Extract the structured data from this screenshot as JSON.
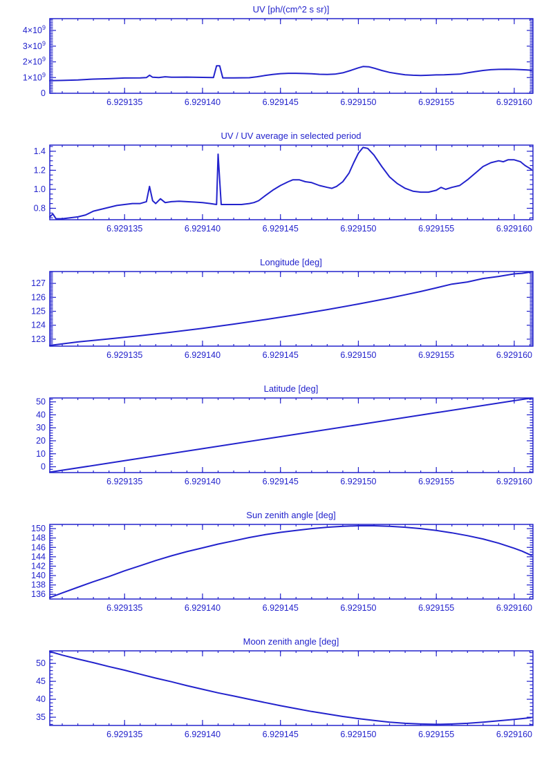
{
  "style": {
    "background": "#ffffff",
    "accent": "#2222cc"
  },
  "chart_data": [
    {
      "type": "line",
      "title": "UV [ph/(cm^2 s sr)]",
      "xlim": [
        6.9291302,
        6.9291612
      ],
      "ylim": [
        0,
        4750000000.0
      ],
      "xticks": [
        6.929135,
        6.92914,
        6.929145,
        6.92915,
        6.929155,
        6.92916
      ],
      "xtick_labels": [
        "6.929135",
        "6.929140",
        "6.929145",
        "6.929150",
        "6.929155",
        "6.929160"
      ],
      "x_minor_step": 1e-06,
      "yticks": [
        0,
        1000000000.0,
        2000000000.0,
        3000000000.0,
        4000000000.0
      ],
      "ytick_labels": [
        "0",
        "1×10^9",
        "2×10^9",
        "3×10^9",
        "4×10^9"
      ],
      "y_minor_step": 100000000.0,
      "x": [
        6.9291302,
        6.929131,
        6.929132,
        6.929133,
        6.929134,
        6.929135,
        6.929136,
        6.9291364,
        6.9291366,
        6.9291368,
        6.9291372,
        6.9291376,
        6.929138,
        6.929139,
        6.92914,
        6.9291407,
        6.9291409,
        6.9291411,
        6.9291413,
        6.929142,
        6.929143,
        6.9291435,
        6.929144,
        6.9291445,
        6.929145,
        6.9291455,
        6.929146,
        6.9291465,
        6.929147,
        6.9291475,
        6.929148,
        6.9291485,
        6.929149,
        6.9291495,
        6.92915,
        6.9291503,
        6.9291507,
        6.929151,
        6.9291515,
        6.929152,
        6.9291525,
        6.929153,
        6.9291535,
        6.929154,
        6.9291545,
        6.929155,
        6.9291555,
        6.929156,
        6.9291565,
        6.929157,
        6.9291575,
        6.929158,
        6.9291585,
        6.929159,
        6.9291595,
        6.92916,
        6.9291605,
        6.9291611
      ],
      "y": [
        800000000.0,
        820000000.0,
        850000000.0,
        900000000.0,
        930000000.0,
        970000000.0,
        980000000.0,
        1000000000.0,
        1150000000.0,
        1020000000.0,
        1000000000.0,
        1050000000.0,
        1020000000.0,
        1030000000.0,
        1010000000.0,
        1000000000.0,
        1750000000.0,
        1750000000.0,
        980000000.0,
        980000000.0,
        990000000.0,
        1050000000.0,
        1130000000.0,
        1200000000.0,
        1250000000.0,
        1270000000.0,
        1270000000.0,
        1260000000.0,
        1240000000.0,
        1210000000.0,
        1200000000.0,
        1220000000.0,
        1300000000.0,
        1450000000.0,
        1620000000.0,
        1700000000.0,
        1680000000.0,
        1600000000.0,
        1450000000.0,
        1330000000.0,
        1250000000.0,
        1180000000.0,
        1150000000.0,
        1130000000.0,
        1150000000.0,
        1170000000.0,
        1180000000.0,
        1200000000.0,
        1220000000.0,
        1300000000.0,
        1380000000.0,
        1450000000.0,
        1500000000.0,
        1520000000.0,
        1530000000.0,
        1520000000.0,
        1500000000.0,
        1470000000.0
      ]
    },
    {
      "type": "line",
      "title": "UV / UV average in selected period",
      "xlim": [
        6.9291302,
        6.9291612
      ],
      "ylim": [
        0.68,
        1.465
      ],
      "xticks": [
        6.929135,
        6.92914,
        6.929145,
        6.92915,
        6.929155,
        6.92916
      ],
      "xtick_labels": [
        "6.929135",
        "6.929140",
        "6.929145",
        "6.929150",
        "6.929155",
        "6.929160"
      ],
      "x_minor_step": 1e-06,
      "yticks": [
        0.8,
        1.0,
        1.2,
        1.4
      ],
      "ytick_labels": [
        "0.8",
        "1.0",
        "1.2",
        "1.4"
      ],
      "y_minor_step": 0.05,
      "x": [
        6.9291302,
        6.9291304,
        6.9291306,
        6.929131,
        6.9291315,
        6.929132,
        6.9291325,
        6.929133,
        6.9291335,
        6.929134,
        6.9291345,
        6.929135,
        6.9291355,
        6.929136,
        6.9291364,
        6.9291366,
        6.9291368,
        6.929137,
        6.9291373,
        6.9291376,
        6.929138,
        6.9291385,
        6.929139,
        6.9291395,
        6.92914,
        6.9291405,
        6.9291409,
        6.929141,
        6.9291412,
        6.929142,
        6.9291425,
        6.929143,
        6.9291433,
        6.9291436,
        6.929144,
        6.9291445,
        6.929145,
        6.9291455,
        6.9291458,
        6.9291462,
        6.9291466,
        6.929147,
        6.9291475,
        6.929148,
        6.9291483,
        6.9291486,
        6.929149,
        6.9291494,
        6.9291497,
        6.92915,
        6.9291503,
        6.9291506,
        6.929151,
        6.9291515,
        6.929152,
        6.9291525,
        6.929153,
        6.9291535,
        6.929154,
        6.9291545,
        6.929155,
        6.9291553,
        6.9291556,
        6.929156,
        6.9291565,
        6.929157,
        6.9291575,
        6.929158,
        6.9291585,
        6.929159,
        6.9291593,
        6.9291596,
        6.92916,
        6.9291604,
        6.9291607,
        6.9291611
      ],
      "y": [
        0.71,
        0.74,
        0.69,
        0.69,
        0.7,
        0.71,
        0.73,
        0.77,
        0.79,
        0.81,
        0.83,
        0.84,
        0.85,
        0.85,
        0.87,
        1.03,
        0.88,
        0.85,
        0.9,
        0.86,
        0.87,
        0.875,
        0.87,
        0.865,
        0.86,
        0.85,
        0.84,
        1.37,
        0.84,
        0.84,
        0.84,
        0.85,
        0.86,
        0.88,
        0.93,
        0.99,
        1.04,
        1.08,
        1.1,
        1.1,
        1.08,
        1.07,
        1.04,
        1.02,
        1.01,
        1.03,
        1.08,
        1.17,
        1.28,
        1.38,
        1.44,
        1.43,
        1.36,
        1.24,
        1.13,
        1.06,
        1.01,
        0.98,
        0.97,
        0.97,
        0.99,
        1.02,
        1.0,
        1.02,
        1.04,
        1.1,
        1.17,
        1.24,
        1.28,
        1.3,
        1.29,
        1.31,
        1.31,
        1.29,
        1.25,
        1.21
      ]
    },
    {
      "type": "line",
      "title": "Longitude [deg]",
      "xlim": [
        6.9291302,
        6.9291612
      ],
      "ylim": [
        122.5,
        127.85
      ],
      "xticks": [
        6.929135,
        6.92914,
        6.929145,
        6.92915,
        6.929155,
        6.92916
      ],
      "xtick_labels": [
        "6.929135",
        "6.929140",
        "6.929145",
        "6.929150",
        "6.929155",
        "6.929160"
      ],
      "x_minor_step": 1e-06,
      "yticks": [
        123,
        124,
        125,
        126,
        127
      ],
      "ytick_labels": [
        "123",
        "124",
        "125",
        "126",
        "127"
      ],
      "y_minor_step": 0.1,
      "x": [
        6.9291302,
        6.929132,
        6.929134,
        6.929136,
        6.929138,
        6.92914,
        6.929142,
        6.929144,
        6.929146,
        6.929148,
        6.92915,
        6.929152,
        6.929153,
        6.929154,
        6.929155,
        6.929156,
        6.929157,
        6.929158,
        6.929159,
        6.92916,
        6.9291605,
        6.9291611
      ],
      "y": [
        122.55,
        122.8,
        123.02,
        123.25,
        123.5,
        123.78,
        124.08,
        124.4,
        124.75,
        125.12,
        125.52,
        125.95,
        126.18,
        126.42,
        126.68,
        126.95,
        127.1,
        127.35,
        127.5,
        127.68,
        127.72,
        127.82
      ]
    },
    {
      "type": "line",
      "title": "Latitude [deg]",
      "xlim": [
        6.9291302,
        6.9291612
      ],
      "ylim": [
        -4.5,
        53.0
      ],
      "xticks": [
        6.929135,
        6.92914,
        6.929145,
        6.92915,
        6.929155,
        6.92916
      ],
      "xtick_labels": [
        "6.929135",
        "6.929140",
        "6.929145",
        "6.929150",
        "6.929155",
        "6.929160"
      ],
      "x_minor_step": 1e-06,
      "yticks": [
        0,
        10,
        20,
        30,
        40,
        50
      ],
      "ytick_labels": [
        "0",
        "10",
        "20",
        "30",
        "40",
        "50"
      ],
      "y_minor_step": 2,
      "x": [
        6.9291302,
        6.929135,
        6.92914,
        6.929145,
        6.92915,
        6.929155,
        6.92916,
        6.9291611
      ],
      "y": [
        -4.2,
        4.68,
        13.9,
        23.2,
        32.4,
        41.65,
        50.9,
        52.9
      ]
    },
    {
      "type": "line",
      "title": "Sun zenith angle [deg]",
      "xlim": [
        6.9291302,
        6.9291612
      ],
      "ylim": [
        135.0,
        150.9
      ],
      "xticks": [
        6.929135,
        6.92914,
        6.929145,
        6.92915,
        6.929155,
        6.92916
      ],
      "xtick_labels": [
        "6.929135",
        "6.929140",
        "6.929145",
        "6.929150",
        "6.929155",
        "6.929160"
      ],
      "x_minor_step": 1e-06,
      "yticks": [
        136,
        138,
        140,
        142,
        144,
        146,
        148,
        150
      ],
      "ytick_labels": [
        "136",
        "138",
        "140",
        "142",
        "144",
        "146",
        "148",
        "150"
      ],
      "y_minor_step": 0.5,
      "x": [
        6.9291302,
        6.929131,
        6.929132,
        6.929133,
        6.929134,
        6.929135,
        6.929136,
        6.929137,
        6.929138,
        6.929139,
        6.92914,
        6.929141,
        6.929142,
        6.929143,
        6.929144,
        6.929145,
        6.929146,
        6.929147,
        6.929148,
        6.929149,
        6.92915,
        6.929151,
        6.929152,
        6.929153,
        6.929154,
        6.929155,
        6.929156,
        6.929157,
        6.929158,
        6.929159,
        6.92916,
        6.9291605,
        6.9291611
      ],
      "y": [
        135.3,
        136.3,
        137.5,
        138.7,
        139.8,
        141.0,
        142.1,
        143.2,
        144.2,
        145.1,
        145.9,
        146.7,
        147.4,
        148.1,
        148.7,
        149.2,
        149.6,
        150.0,
        150.3,
        150.5,
        150.6,
        150.6,
        150.5,
        150.3,
        150.0,
        149.6,
        149.1,
        148.5,
        147.8,
        146.9,
        145.8,
        145.2,
        144.3
      ]
    },
    {
      "type": "line",
      "title": "Moon zenith angle [deg]",
      "xlim": [
        6.9291302,
        6.9291612
      ],
      "ylim": [
        32.7,
        53.5
      ],
      "xticks": [
        6.929135,
        6.92914,
        6.929145,
        6.92915,
        6.929155,
        6.92916
      ],
      "xtick_labels": [
        "6.929135",
        "6.929140",
        "6.929145",
        "6.929150",
        "6.929155",
        "6.929160"
      ],
      "x_minor_step": 1e-06,
      "yticks": [
        35,
        40,
        45,
        50
      ],
      "ytick_labels": [
        "35",
        "40",
        "45",
        "50"
      ],
      "y_minor_step": 1,
      "x": [
        6.9291302,
        6.929131,
        6.929132,
        6.929133,
        6.929134,
        6.929135,
        6.929136,
        6.929137,
        6.929138,
        6.929139,
        6.92914,
        6.929141,
        6.929142,
        6.929143,
        6.929144,
        6.929145,
        6.929146,
        6.929147,
        6.929148,
        6.929149,
        6.92915,
        6.929151,
        6.929152,
        6.929153,
        6.929154,
        6.929155,
        6.929156,
        6.929157,
        6.929158,
        6.929159,
        6.92916,
        6.9291605,
        6.9291611
      ],
      "y": [
        53.3,
        52.3,
        51.2,
        50.2,
        49.1,
        48.1,
        47.0,
        45.9,
        44.9,
        43.8,
        42.8,
        41.8,
        40.9,
        40.0,
        39.1,
        38.2,
        37.4,
        36.6,
        35.9,
        35.2,
        34.6,
        34.1,
        33.6,
        33.3,
        33.1,
        33.0,
        33.1,
        33.3,
        33.6,
        34.0,
        34.4,
        34.6,
        34.9
      ]
    }
  ]
}
